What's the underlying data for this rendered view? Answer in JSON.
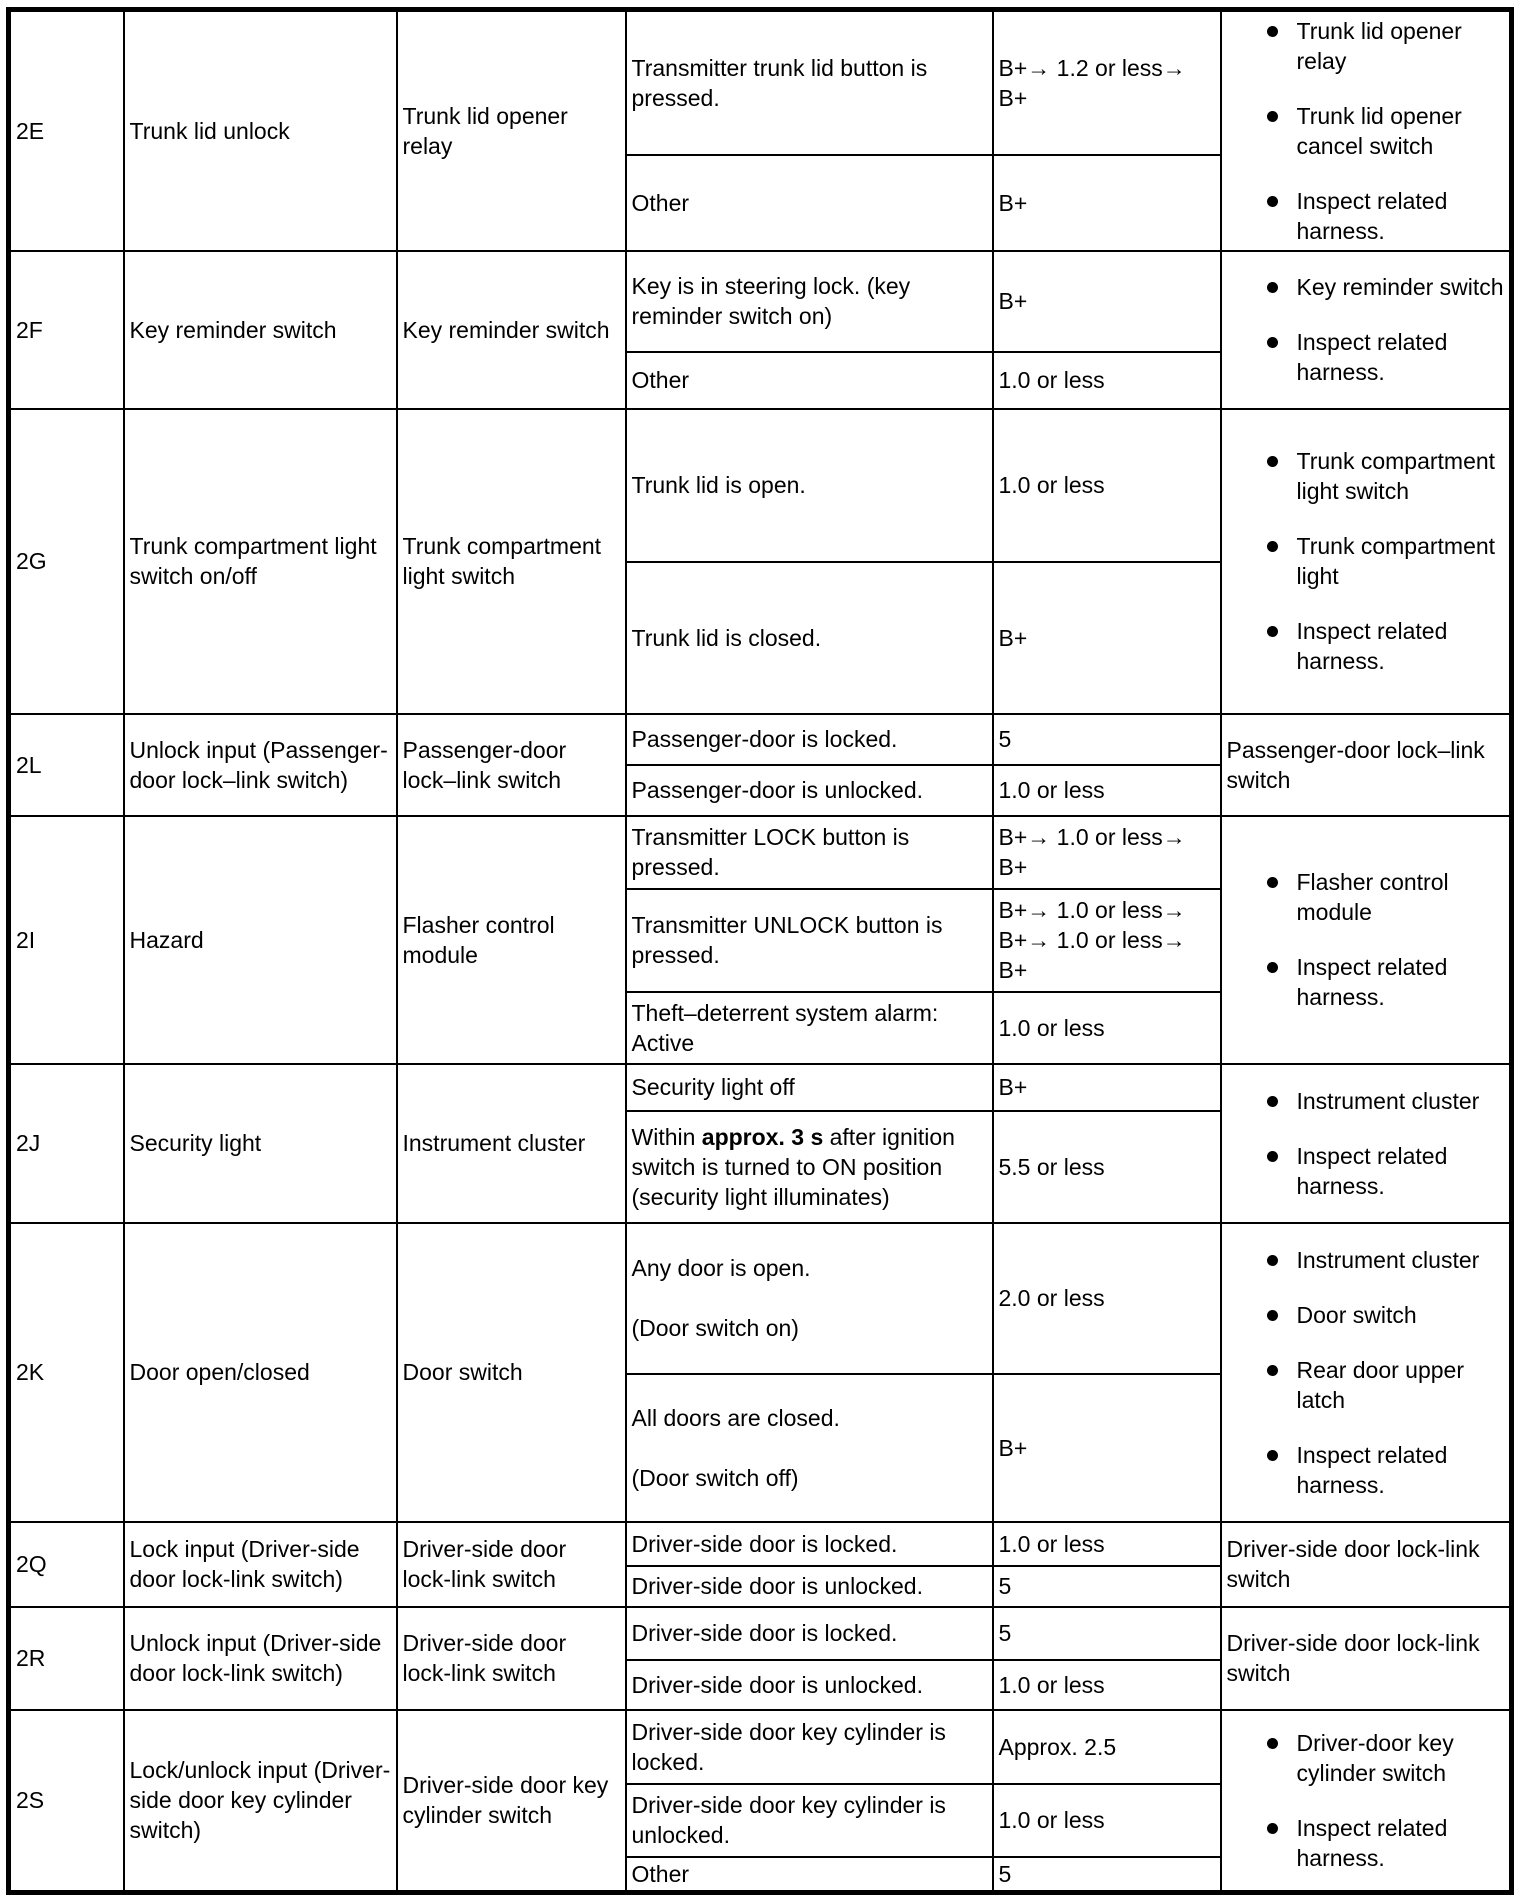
{
  "rows": [
    {
      "terminal": "2E",
      "function": "Trunk lid unlock",
      "component": "Trunk lid opener relay",
      "conditions": [
        {
          "condition": "Transmitter trunk lid button is pressed.",
          "voltage": "B+→ 1.2 or less→ B+"
        },
        {
          "condition": "Other",
          "voltage": "B+"
        }
      ],
      "remedy": {
        "bullets": [
          "Trunk lid opener relay",
          "Trunk lid opener cancel switch",
          "Inspect related harness."
        ]
      }
    },
    {
      "terminal": "2F",
      "function": "Key reminder switch",
      "component": "Key reminder switch",
      "conditions": [
        {
          "condition": "Key is in steering lock. (key reminder switch on)",
          "voltage": "B+"
        },
        {
          "condition": "Other",
          "voltage": "1.0 or less"
        }
      ],
      "remedy": {
        "bullets": [
          "Key reminder switch",
          "Inspect related harness."
        ]
      }
    },
    {
      "terminal": "2G",
      "function": "Trunk compartment light switch on/off",
      "component": "Trunk compartment light switch",
      "conditions": [
        {
          "condition": "Trunk lid is open.",
          "voltage": "1.0 or less"
        },
        {
          "condition": "Trunk lid is closed.",
          "voltage": "B+"
        }
      ],
      "remedy": {
        "bullets": [
          "Trunk compartment light switch",
          "Trunk compartment light",
          "Inspect related harness."
        ]
      }
    },
    {
      "terminal": "2L",
      "function": "Unlock input (Passenger-door lock–link switch)",
      "component": "Passenger-door lock–link switch",
      "conditions": [
        {
          "condition": "Passenger-door is locked.",
          "voltage": "5"
        },
        {
          "condition": "Passenger-door is unlocked.",
          "voltage": "1.0 or less"
        }
      ],
      "remedy": {
        "text": "Passenger-door lock–link switch"
      }
    },
    {
      "terminal": "2I",
      "function": "Hazard",
      "component": "Flasher control module",
      "conditions": [
        {
          "condition": "Transmitter LOCK button is pressed.",
          "voltage": "B+→ 1.0 or less→ B+"
        },
        {
          "condition": "Transmitter UNLOCK button is pressed.",
          "voltage": "B+→ 1.0 or less→ B+→ 1.0 or less→ B+"
        },
        {
          "condition": "Theft–deterrent system alarm: Active",
          "voltage": "1.0 or less"
        }
      ],
      "remedy": {
        "bullets": [
          "Flasher control module",
          "Inspect related harness."
        ]
      }
    },
    {
      "terminal": "2J",
      "function": "Security light",
      "component": "Instrument cluster",
      "conditions": [
        {
          "condition": "Security light off",
          "voltage": "B+"
        },
        {
          "condition_parts": [
            {
              "text": "Within "
            },
            {
              "text": "approx. 3 s",
              "bold": true
            },
            {
              "text": " after ignition switch is turned to ON position (security light illuminates)"
            }
          ],
          "voltage": "5.5 or less"
        }
      ],
      "remedy": {
        "bullets": [
          "Instrument cluster",
          "Inspect related harness."
        ]
      }
    },
    {
      "terminal": "2K",
      "function": "Door open/closed",
      "component": "Door switch",
      "conditions": [
        {
          "condition": "Any door is open.\n\n(Door switch on)",
          "voltage": "2.0 or less"
        },
        {
          "condition": "All doors are closed.\n\n(Door switch off)",
          "voltage": "B+"
        }
      ],
      "remedy": {
        "bullets": [
          "Instrument cluster",
          "Door switch",
          "Rear door upper latch",
          "Inspect related harness."
        ]
      }
    },
    {
      "terminal": "2Q",
      "function": "Lock input (Driver-side door lock-link switch)",
      "component": "Driver-side door lock-link switch",
      "conditions": [
        {
          "condition": "Driver-side door is locked.",
          "voltage": "1.0 or less"
        },
        {
          "condition": "Driver-side door is unlocked.",
          "voltage": "5"
        }
      ],
      "remedy": {
        "text": "Driver-side door lock-link switch"
      }
    },
    {
      "terminal": "2R",
      "function": "Unlock input (Driver-side door lock-link switch)",
      "component": "Driver-side door lock-link switch",
      "conditions": [
        {
          "condition": "Driver-side door is locked.",
          "voltage": "5"
        },
        {
          "condition": "Driver-side door is unlocked.",
          "voltage": "1.0 or less"
        }
      ],
      "remedy": {
        "text": "Driver-side door lock-link switch"
      }
    },
    {
      "terminal": "2S",
      "function": "Lock/unlock input (Driver-side door key cylinder switch)",
      "component": "Driver-side door key cylinder switch",
      "conditions": [
        {
          "condition": "Driver-side door key cylinder is locked.",
          "voltage": "Approx. 2.5"
        },
        {
          "condition": "Driver-side door key cylinder is unlocked.",
          "voltage": "1.0 or less"
        },
        {
          "condition": "Other",
          "voltage": "5"
        }
      ],
      "remedy": {
        "bullets": [
          "Driver-door key cylinder switch",
          "Inspect related harness."
        ]
      }
    }
  ]
}
